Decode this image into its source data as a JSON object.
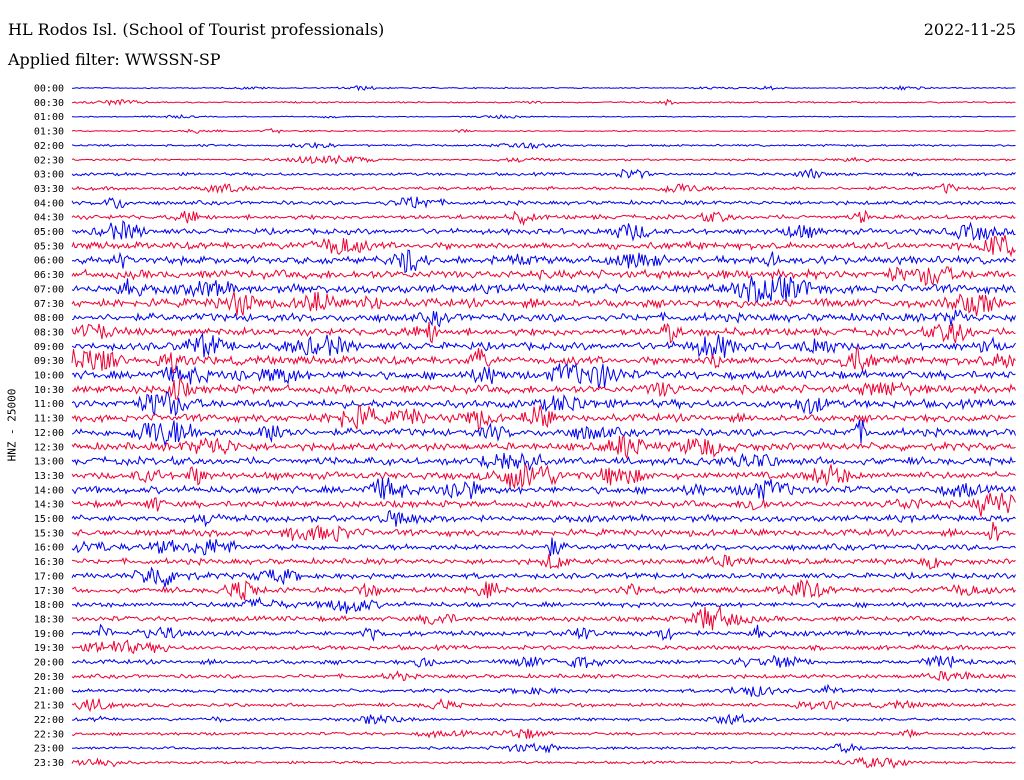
{
  "header": {
    "station": "HL Rodos Isl. (School of Tourist professionals)",
    "date": "2022-11-25",
    "filter": "Applied filter: WWSSN-SP"
  },
  "chart_data": {
    "type": "line",
    "title": "HL Rodos Isl. (School of Tourist professionals)",
    "ylabel": "HNZ - 25000",
    "row_labels": [
      "00:00",
      "00:30",
      "01:00",
      "01:30",
      "02:00",
      "02:30",
      "03:00",
      "03:30",
      "04:00",
      "04:30",
      "05:00",
      "05:30",
      "06:00",
      "06:30",
      "07:00",
      "07:30",
      "08:00",
      "08:30",
      "09:00",
      "09:30",
      "10:00",
      "10:30",
      "11:00",
      "11:30",
      "12:00",
      "12:30",
      "13:00",
      "13:30",
      "14:00",
      "14:30",
      "15:00",
      "15:30",
      "16:00",
      "16:30",
      "17:00",
      "17:30",
      "18:00",
      "18:30",
      "19:00",
      "19:30",
      "20:00",
      "20:30",
      "21:00",
      "21:30",
      "22:00",
      "22:30",
      "23:00",
      "23:30"
    ],
    "row_colors": [
      "#0000ee",
      "#ee0033"
    ],
    "row_amplitude_level": [
      0.12,
      0.15,
      0.1,
      0.12,
      0.2,
      0.2,
      0.3,
      0.35,
      0.4,
      0.45,
      0.55,
      0.7,
      0.75,
      0.85,
      0.85,
      0.85,
      0.8,
      0.75,
      0.75,
      0.8,
      0.8,
      0.8,
      0.8,
      0.75,
      0.75,
      0.75,
      0.75,
      0.7,
      0.7,
      0.65,
      0.65,
      0.65,
      0.6,
      0.55,
      0.55,
      0.55,
      0.5,
      0.5,
      0.5,
      0.45,
      0.45,
      0.4,
      0.35,
      0.35,
      0.3,
      0.3,
      0.25,
      0.25
    ]
  }
}
